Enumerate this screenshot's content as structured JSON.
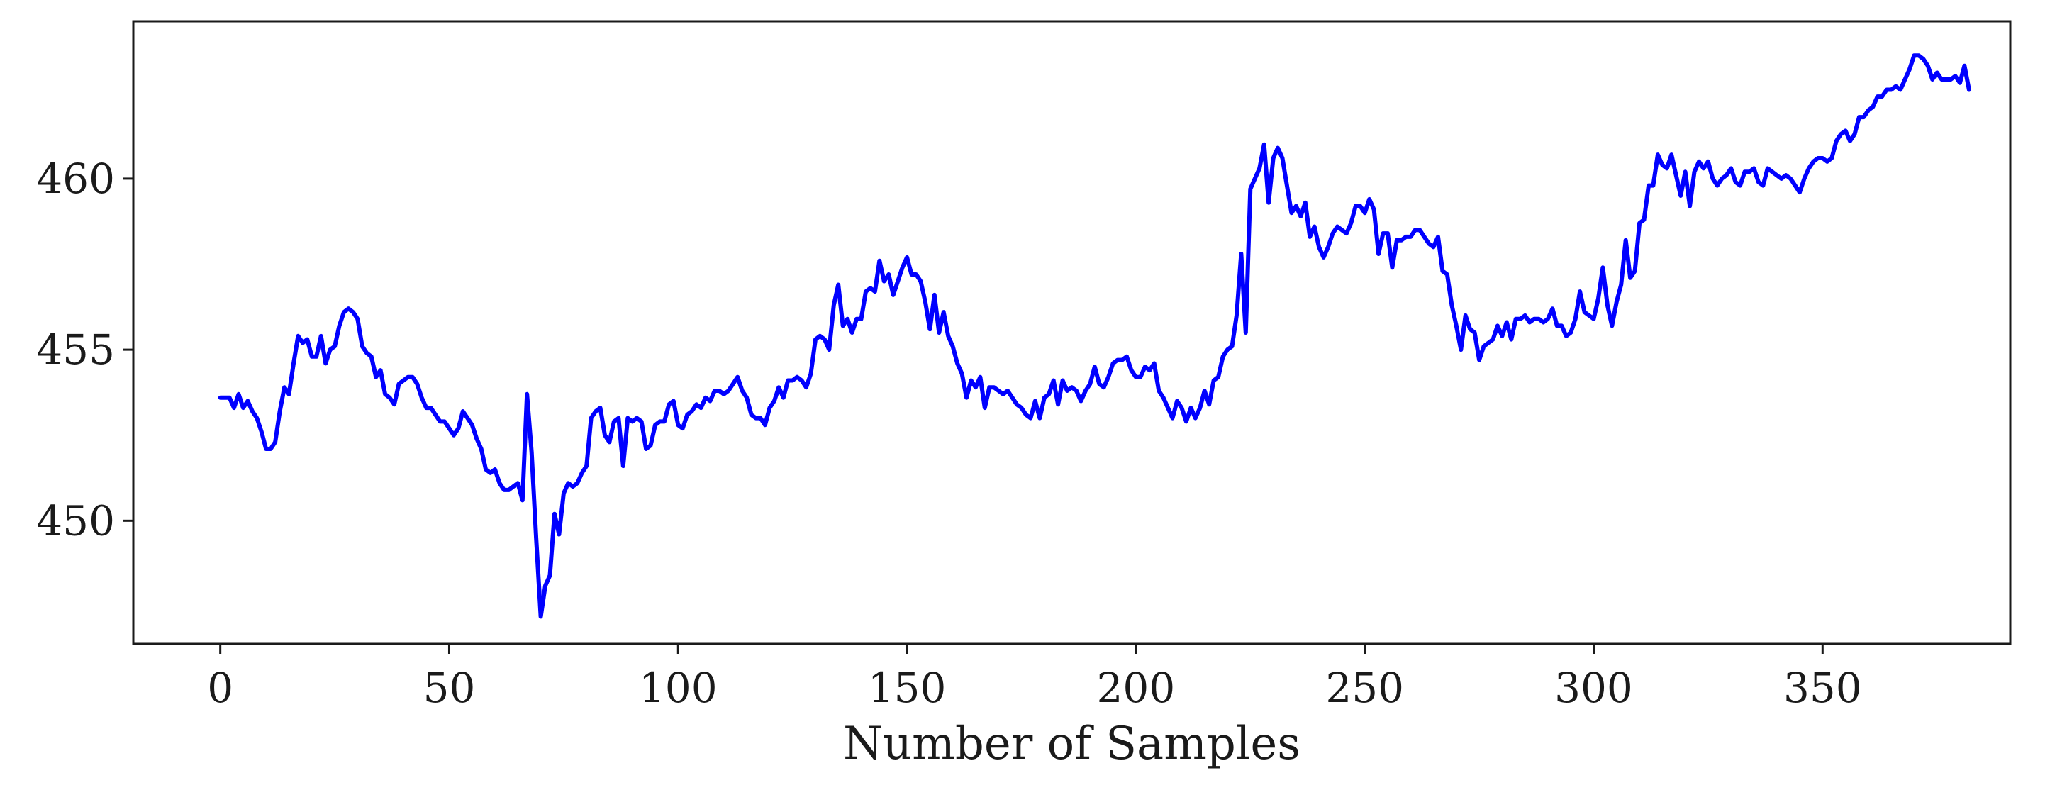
{
  "chart_data": {
    "type": "line",
    "title": "",
    "xlabel": "Number of Samples",
    "ylabel": "",
    "xlim": [
      -19,
      391
    ],
    "ylim": [
      446.4,
      464.6
    ],
    "xticks": [
      0,
      50,
      100,
      150,
      200,
      250,
      300,
      350
    ],
    "yticks": [
      450,
      455,
      460
    ],
    "grid": false,
    "legend": "none",
    "series": [
      {
        "color": "#0000ff",
        "values": [
          453.6,
          453.6,
          453.6,
          453.3,
          453.7,
          453.3,
          453.5,
          453.2,
          453,
          452.6,
          452.1,
          452.1,
          452.3,
          453.2,
          453.9,
          453.7,
          454.6,
          455.4,
          455.2,
          455.3,
          454.8,
          454.8,
          455.4,
          454.6,
          455,
          455.1,
          455.7,
          456.1,
          456.2,
          456.1,
          455.9,
          455.1,
          454.9,
          454.8,
          454.2,
          454.4,
          453.7,
          453.6,
          453.4,
          454,
          454.1,
          454.2,
          454.2,
          454,
          453.6,
          453.3,
          453.3,
          453.1,
          452.9,
          452.9,
          452.7,
          452.5,
          452.7,
          453.2,
          453,
          452.8,
          452.4,
          452.1,
          451.5,
          451.4,
          451.5,
          451.1,
          450.9,
          450.9,
          451,
          451.1,
          450.6,
          453.7,
          452,
          449.5,
          447.2,
          448.1,
          448.4,
          450.2,
          449.6,
          450.8,
          451.1,
          451,
          451.1,
          451.4,
          451.6,
          453,
          453.2,
          453.3,
          452.5,
          452.3,
          452.9,
          453,
          451.6,
          453,
          452.9,
          453,
          452.9,
          452.1,
          452.2,
          452.8,
          452.9,
          452.9,
          453.4,
          453.5,
          452.8,
          452.7,
          453.1,
          453.2,
          453.4,
          453.3,
          453.6,
          453.5,
          453.8,
          453.8,
          453.7,
          453.8,
          454,
          454.2,
          453.8,
          453.6,
          453.1,
          453,
          453,
          452.8,
          453.3,
          453.5,
          453.9,
          453.6,
          454.1,
          454.1,
          454.2,
          454.1,
          453.9,
          454.3,
          455.3,
          455.4,
          455.3,
          455,
          456.3,
          456.9,
          455.7,
          455.9,
          455.5,
          455.9,
          455.9,
          456.7,
          456.8,
          456.7,
          457.6,
          457,
          457.2,
          456.6,
          457,
          457.4,
          457.7,
          457.2,
          457.2,
          457,
          456.4,
          455.6,
          456.6,
          455.5,
          456.1,
          455.4,
          455.1,
          454.6,
          454.3,
          453.6,
          454.1,
          453.9,
          454.2,
          453.3,
          453.9,
          453.9,
          453.8,
          453.7,
          453.8,
          453.6,
          453.4,
          453.3,
          453.1,
          453,
          453.5,
          453,
          453.6,
          453.7,
          454.1,
          453.4,
          454.1,
          453.8,
          453.9,
          453.8,
          453.5,
          453.8,
          454,
          454.5,
          454,
          453.9,
          454.2,
          454.6,
          454.7,
          454.7,
          454.8,
          454.4,
          454.2,
          454.2,
          454.5,
          454.4,
          454.6,
          453.8,
          453.6,
          453.3,
          453,
          453.5,
          453.3,
          452.9,
          453.3,
          453,
          453.3,
          453.8,
          453.4,
          454.1,
          454.2,
          454.8,
          455,
          455.1,
          456,
          457.8,
          455.5,
          459.7,
          460,
          460.3,
          461,
          459.3,
          460.6,
          460.9,
          460.6,
          459.8,
          459,
          459.2,
          458.9,
          459.3,
          458.3,
          458.6,
          458,
          457.7,
          458,
          458.4,
          458.6,
          458.5,
          458.4,
          458.7,
          459.2,
          459.2,
          459,
          459.4,
          459.1,
          457.8,
          458.4,
          458.4,
          457.4,
          458.2,
          458.2,
          458.3,
          458.3,
          458.5,
          458.5,
          458.3,
          458.1,
          458,
          458.3,
          457.3,
          457.2,
          456.3,
          455.7,
          455,
          456,
          455.6,
          455.5,
          454.7,
          455.1,
          455.2,
          455.3,
          455.7,
          455.4,
          455.8,
          455.3,
          455.9,
          455.9,
          456,
          455.8,
          455.9,
          455.9,
          455.8,
          455.9,
          456.2,
          455.7,
          455.7,
          455.4,
          455.5,
          455.9,
          456.7,
          456.1,
          456,
          455.9,
          456.5,
          457.4,
          456.3,
          455.7,
          456.4,
          456.9,
          458.2,
          457.1,
          457.3,
          458.7,
          458.8,
          459.8,
          459.8,
          460.7,
          460.4,
          460.3,
          460.7,
          460.1,
          459.5,
          460.2,
          459.2,
          460.2,
          460.5,
          460.3,
          460.5,
          460,
          459.8,
          460,
          460.1,
          460.3,
          459.9,
          459.8,
          460.2,
          460.2,
          460.3,
          459.9,
          459.8,
          460.3,
          460.2,
          460.1,
          460,
          460.1,
          460,
          459.8,
          459.6,
          460,
          460.3,
          460.5,
          460.6,
          460.6,
          460.5,
          460.6,
          461.1,
          461.3,
          461.4,
          461.1,
          461.3,
          461.8,
          461.8,
          462,
          462.1,
          462.4,
          462.4,
          462.6,
          462.6,
          462.7,
          462.6,
          462.9,
          463.2,
          463.6,
          463.6,
          463.5,
          463.3,
          462.9,
          463.1,
          462.9,
          462.9,
          462.9,
          463,
          462.8,
          463.3,
          462.6
        ]
      }
    ]
  }
}
